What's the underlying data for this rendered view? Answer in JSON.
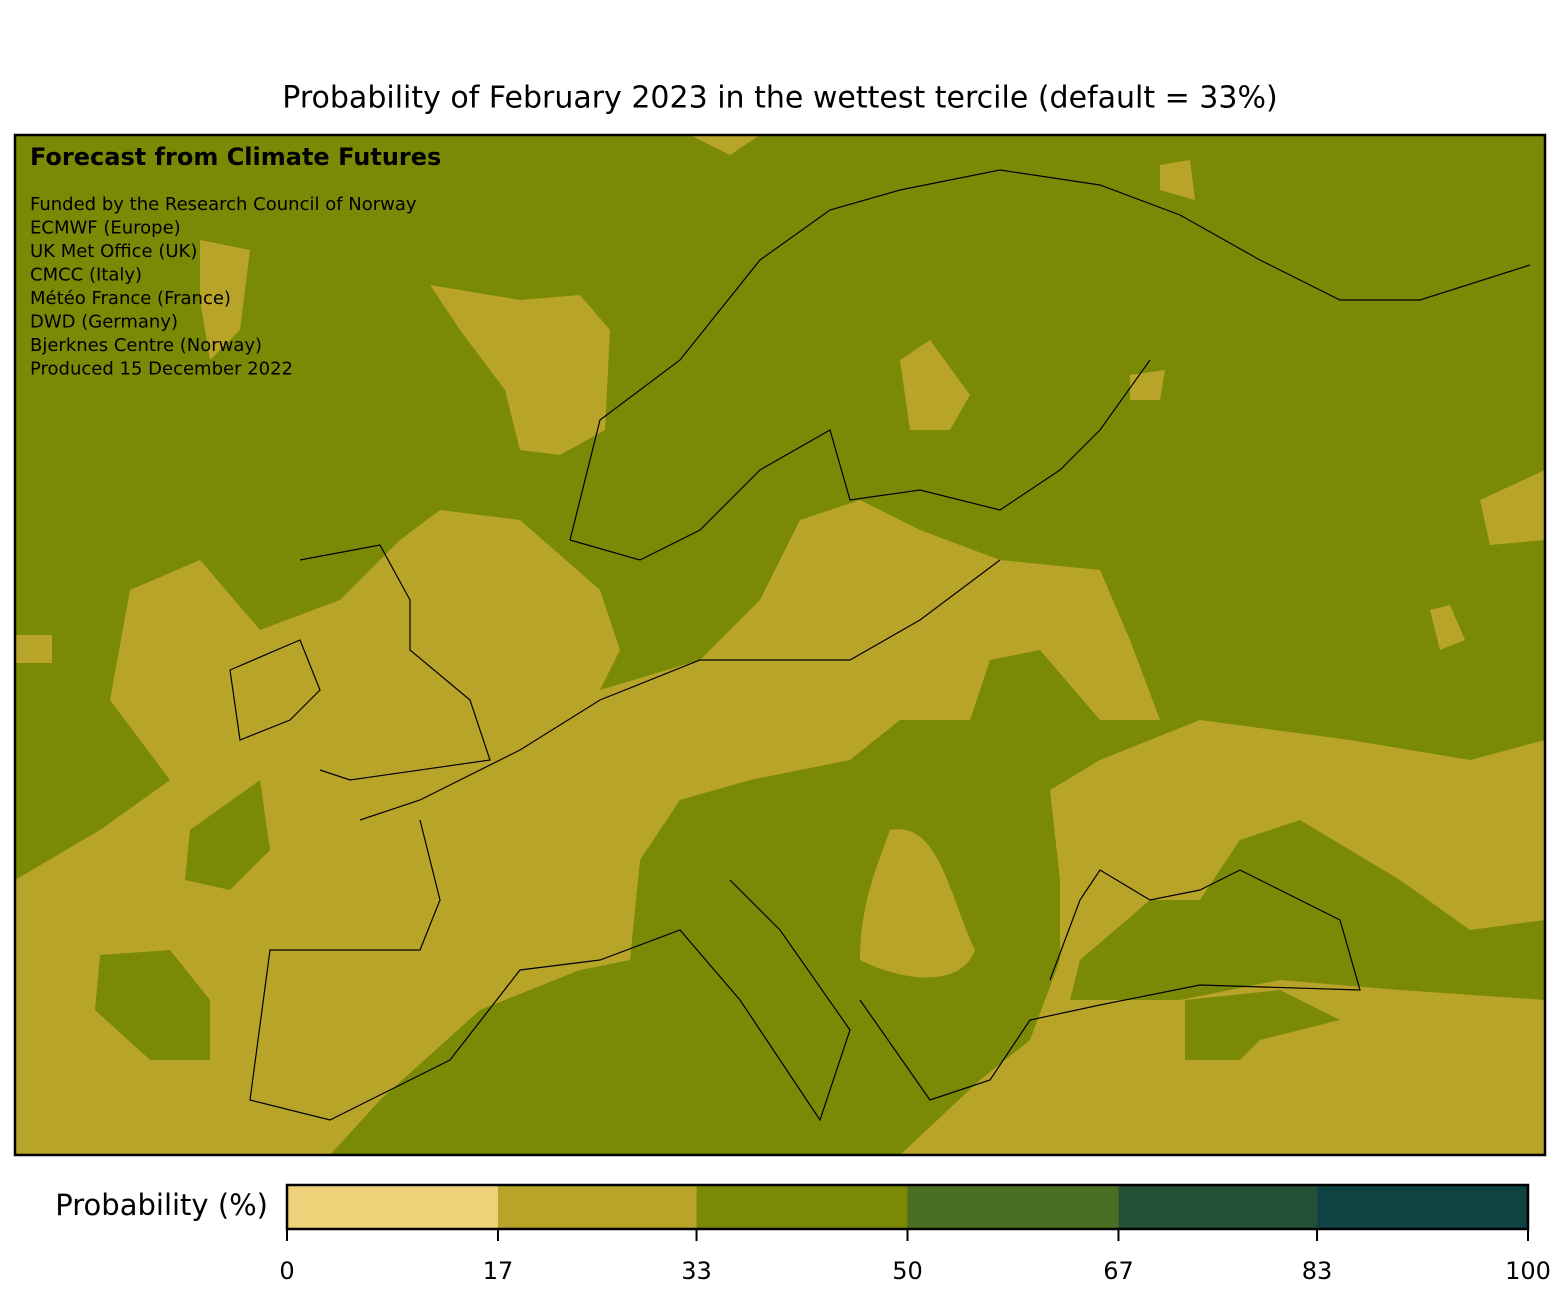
{
  "title": "Probability of February 2023 in the wettest tercile (default = 33%)",
  "annotation": {
    "heading": "Forecast from Climate Futures",
    "lines": [
      "Funded by the Research Council of Norway",
      "ECMWF (Europe)",
      "UK Met Office (UK)",
      "CMCC (Italy)",
      "Météo France (France)",
      "DWD (Germany)",
      "Bjerknes Centre (Norway)",
      "Produced 15 December 2022"
    ]
  },
  "colorbar": {
    "label": "Probability (%)",
    "ticks": [
      0,
      17,
      33,
      50,
      67,
      83,
      100
    ],
    "colors": [
      "#edd27a",
      "#b8a429",
      "#7a8a06",
      "#4a6e22",
      "#245135",
      "#0f4343"
    ]
  }
}
